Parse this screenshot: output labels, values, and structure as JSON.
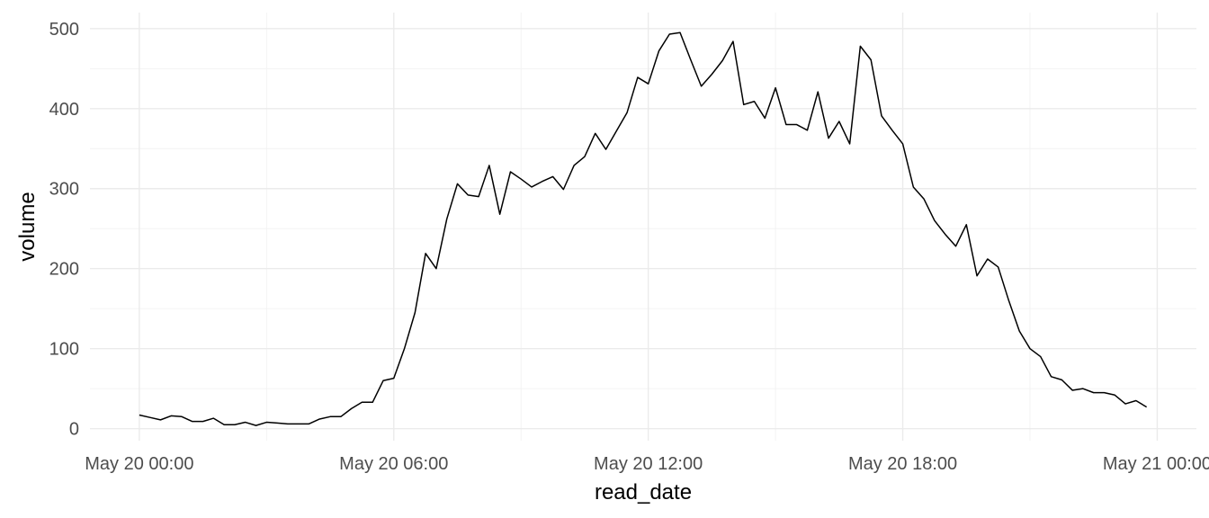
{
  "chart_data": {
    "type": "line",
    "title": "",
    "xlabel": "read_date",
    "ylabel": "volume",
    "x_axis_type": "datetime",
    "x_interval": "10 minutes... 15 minutes per point",
    "xlim": [
      "2021-05-20 00:00",
      "2021-05-21 00:00"
    ],
    "ylim": [
      -15,
      520
    ],
    "grid": true,
    "x_ticks": [
      {
        "value": "2021-05-20 00:00",
        "label": "May 20 00:00"
      },
      {
        "value": "2021-05-20 06:00",
        "label": "May 20 06:00"
      },
      {
        "value": "2021-05-20 12:00",
        "label": "May 20 12:00"
      },
      {
        "value": "2021-05-20 18:00",
        "label": "May 20 18:00"
      },
      {
        "value": "2021-05-21 00:00",
        "label": "May 21 00:00"
      }
    ],
    "y_ticks": [
      {
        "value": 0,
        "label": "0"
      },
      {
        "value": 100,
        "label": "100"
      },
      {
        "value": 200,
        "label": "200"
      },
      {
        "value": 300,
        "label": "300"
      },
      {
        "value": 400,
        "label": "400"
      },
      {
        "value": 500,
        "label": "500"
      }
    ],
    "line_color": "#000000",
    "series": [
      {
        "x": [
          "2021-05-20 00:00",
          "2021-05-20 00:15",
          "2021-05-20 00:30",
          "2021-05-20 00:45",
          "2021-05-20 01:00",
          "2021-05-20 01:15",
          "2021-05-20 01:30",
          "2021-05-20 01:45",
          "2021-05-20 02:00",
          "2021-05-20 02:15",
          "2021-05-20 02:30",
          "2021-05-20 02:45",
          "2021-05-20 03:00",
          "2021-05-20 03:15",
          "2021-05-20 03:30",
          "2021-05-20 03:45",
          "2021-05-20 04:00",
          "2021-05-20 04:15",
          "2021-05-20 04:30",
          "2021-05-20 04:45",
          "2021-05-20 05:00",
          "2021-05-20 05:15",
          "2021-05-20 05:30",
          "2021-05-20 05:45",
          "2021-05-20 06:00",
          "2021-05-20 06:15",
          "2021-05-20 06:30",
          "2021-05-20 06:45",
          "2021-05-20 07:00",
          "2021-05-20 07:15",
          "2021-05-20 07:30",
          "2021-05-20 07:45",
          "2021-05-20 08:00",
          "2021-05-20 08:15",
          "2021-05-20 08:30",
          "2021-05-20 08:45",
          "2021-05-20 09:00",
          "2021-05-20 09:15",
          "2021-05-20 09:30",
          "2021-05-20 09:45",
          "2021-05-20 10:00",
          "2021-05-20 10:15",
          "2021-05-20 10:30",
          "2021-05-20 10:45",
          "2021-05-20 11:00",
          "2021-05-20 11:15",
          "2021-05-20 11:30",
          "2021-05-20 11:45",
          "2021-05-20 12:00",
          "2021-05-20 12:15",
          "2021-05-20 12:30",
          "2021-05-20 12:45",
          "2021-05-20 13:00",
          "2021-05-20 13:15",
          "2021-05-20 13:30",
          "2021-05-20 13:45",
          "2021-05-20 14:00",
          "2021-05-20 14:15",
          "2021-05-20 14:30",
          "2021-05-20 14:45",
          "2021-05-20 15:00",
          "2021-05-20 15:15",
          "2021-05-20 15:30",
          "2021-05-20 15:45",
          "2021-05-20 16:00",
          "2021-05-20 16:15",
          "2021-05-20 16:30",
          "2021-05-20 16:45",
          "2021-05-20 17:00",
          "2021-05-20 17:15",
          "2021-05-20 17:30",
          "2021-05-20 17:45",
          "2021-05-20 18:00",
          "2021-05-20 18:15",
          "2021-05-20 18:30",
          "2021-05-20 18:45",
          "2021-05-20 19:00",
          "2021-05-20 19:15",
          "2021-05-20 19:30",
          "2021-05-20 19:45",
          "2021-05-20 20:00",
          "2021-05-20 20:15",
          "2021-05-20 20:30",
          "2021-05-20 20:45",
          "2021-05-20 21:00",
          "2021-05-20 21:15",
          "2021-05-20 21:30",
          "2021-05-20 21:45",
          "2021-05-20 22:00",
          "2021-05-20 22:15",
          "2021-05-20 22:30",
          "2021-05-20 22:45",
          "2021-05-20 23:00",
          "2021-05-20 23:15",
          "2021-05-20 23:30",
          "2021-05-20 23:45"
        ],
        "values": [
          17,
          14,
          11,
          16,
          15,
          9,
          9,
          13,
          5,
          5,
          8,
          4,
          8,
          7,
          6,
          6,
          6,
          12,
          15,
          15,
          25,
          33,
          33,
          60,
          63,
          100,
          145,
          219,
          200,
          262,
          306,
          292,
          290,
          329,
          268,
          321,
          312,
          302,
          309,
          315,
          299,
          329,
          340,
          369,
          349,
          372,
          395,
          439,
          431,
          472,
          493,
          495,
          461,
          428,
          443,
          460,
          484,
          405,
          409,
          388,
          426,
          380,
          380,
          373,
          421,
          363,
          384,
          356,
          478,
          461,
          391,
          373,
          356,
          302,
          287,
          260,
          243,
          228,
          255,
          191,
          212,
          202,
          160,
          122,
          100,
          90,
          65,
          61,
          48,
          50,
          45,
          45,
          42,
          31,
          35,
          27
        ]
      }
    ]
  }
}
